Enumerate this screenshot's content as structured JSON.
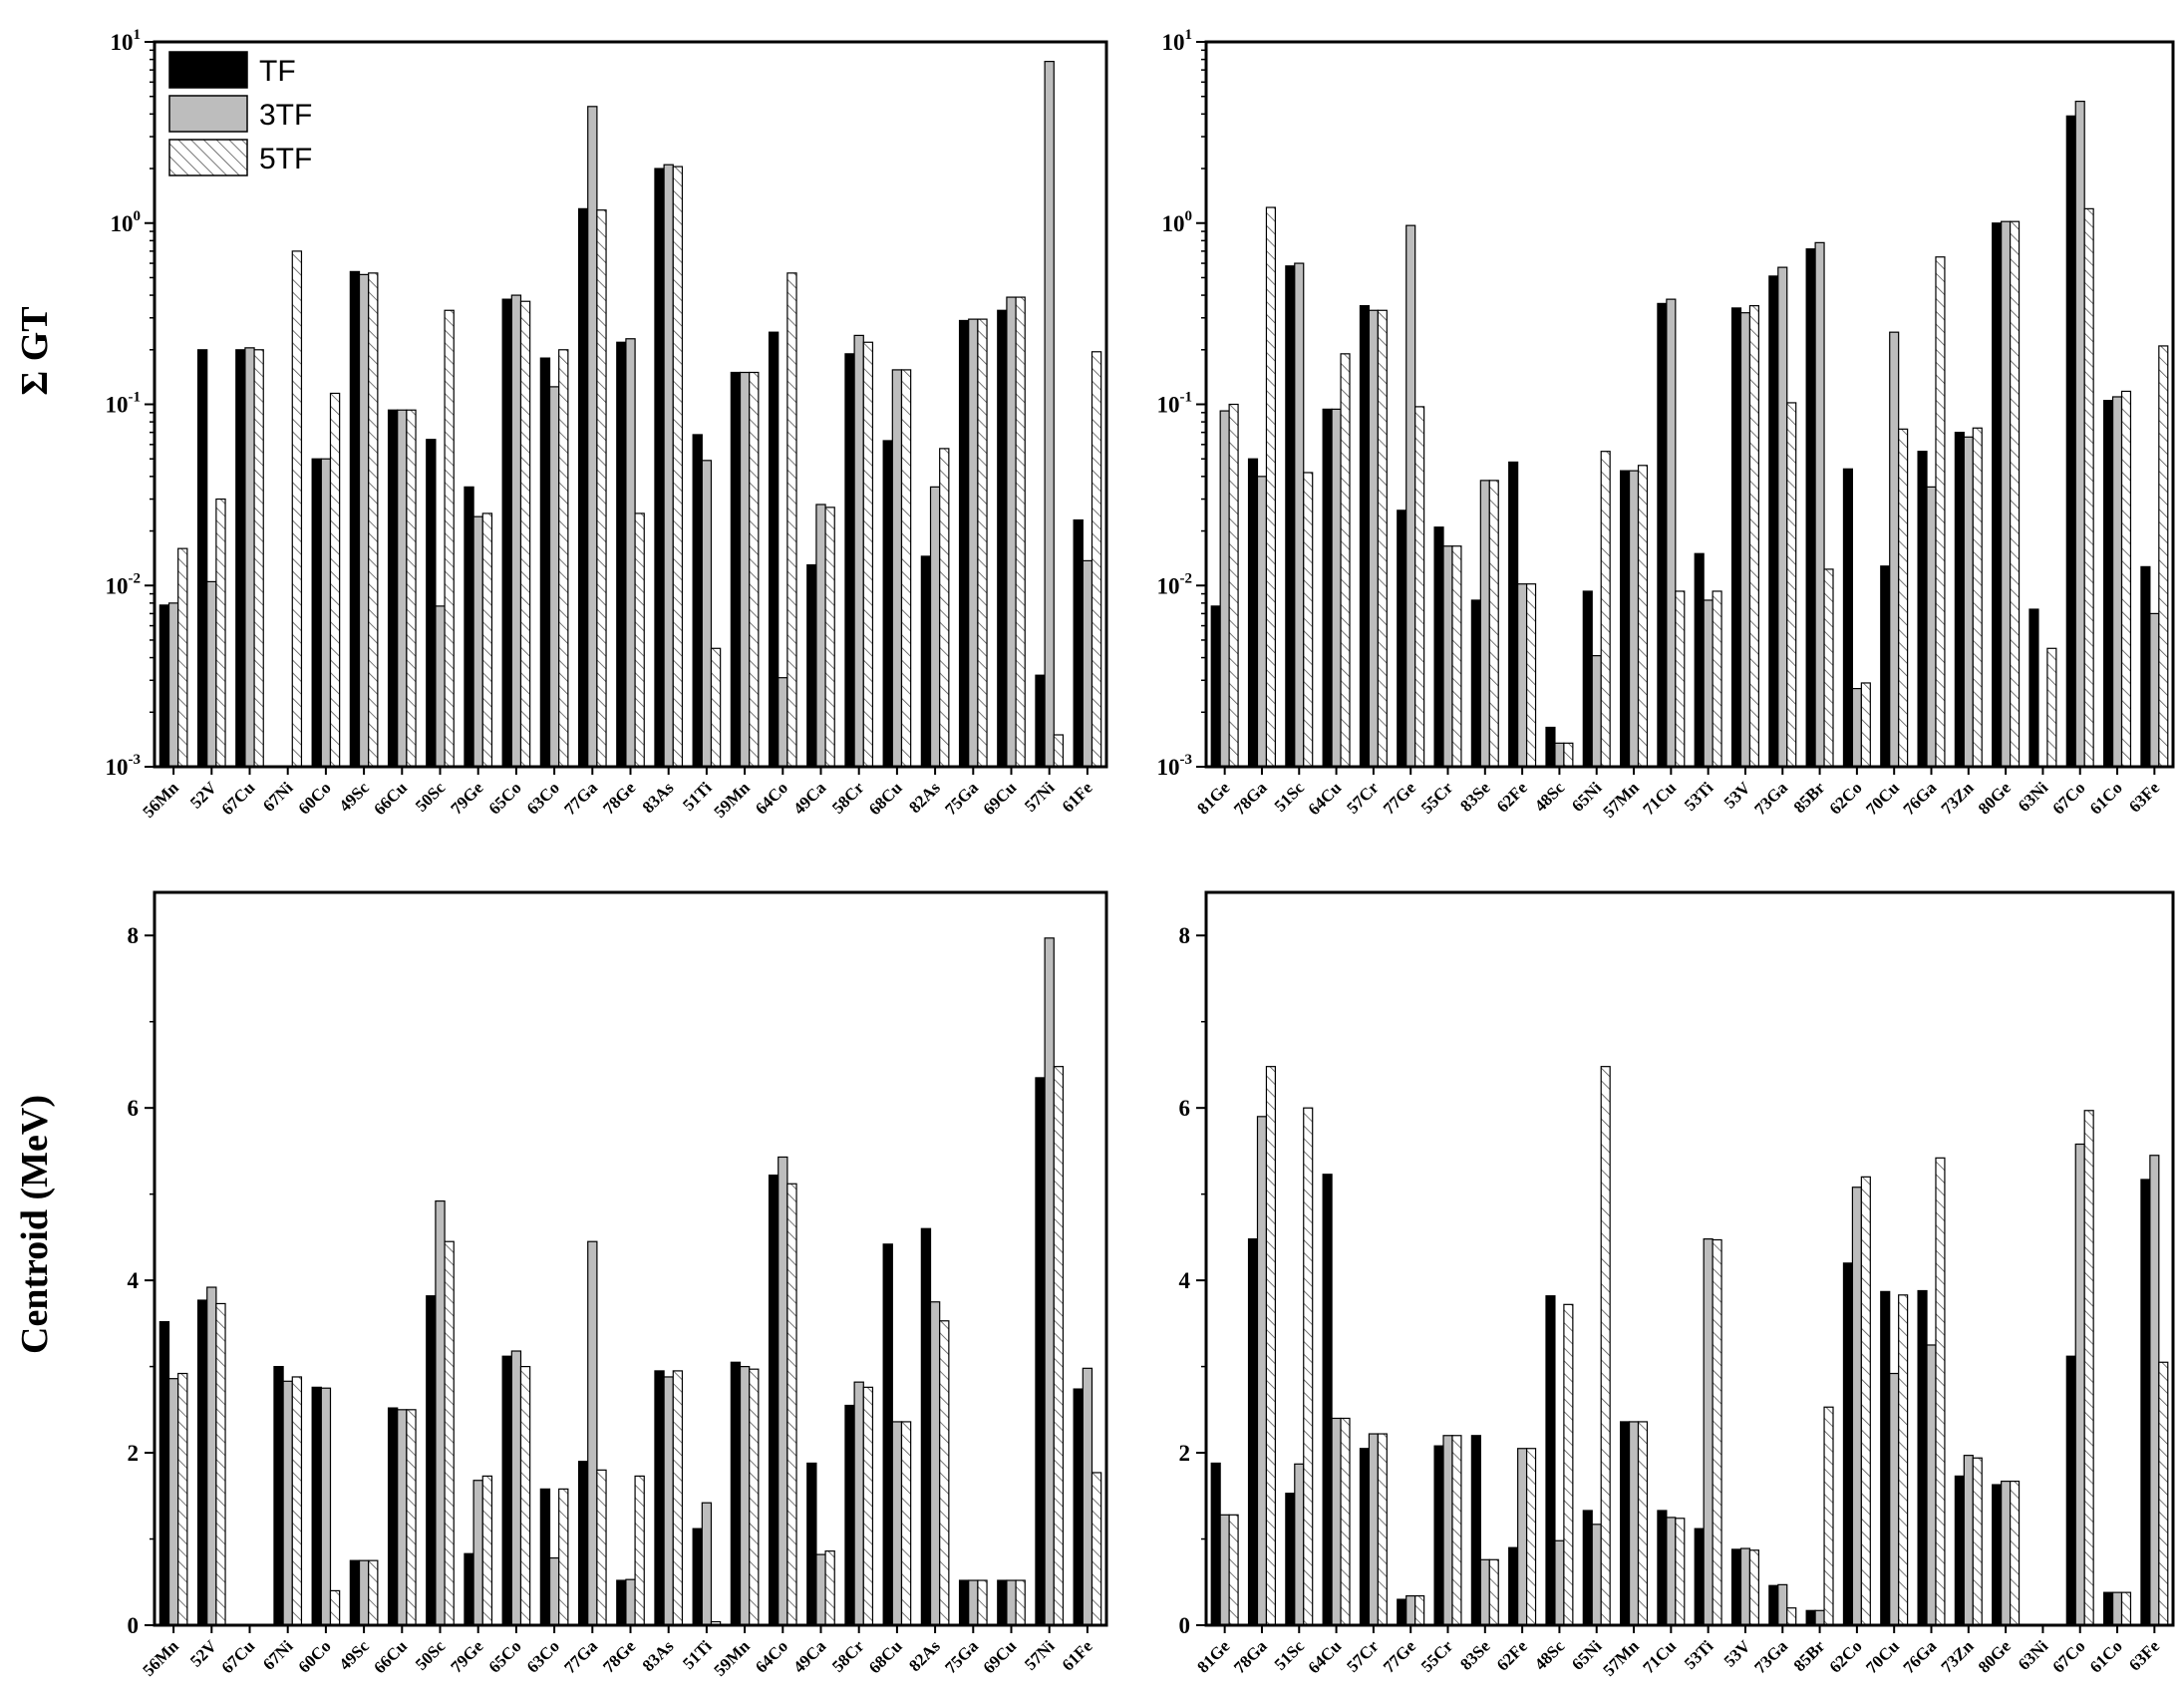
{
  "colors": {
    "TF": "#000000",
    "3TF": "#bdbdbd",
    "5TF": "#ffffff",
    "hatch": "#555555"
  },
  "legend": [
    "TF",
    "3TF",
    "5TF"
  ],
  "ylabels": {
    "gt": "Σ GT",
    "centroid": "Centroid (MeV)"
  },
  "chart_data": [
    {
      "type": "bar",
      "panel": "top-left",
      "yscale": "log",
      "ylim": [
        0.001,
        10
      ],
      "ylabel": "Σ GT",
      "categories": [
        "56Mn",
        "52V",
        "67Cu",
        "67Ni",
        "60Co",
        "49Sc",
        "66Cu",
        "50Sc",
        "79Ge",
        "65Co",
        "63Co",
        "77Ga",
        "78Ge",
        "83As",
        "51Ti",
        "59Mn",
        "64Co",
        "49Ca",
        "58Cr",
        "68Cu",
        "82As",
        "75Ga",
        "69Cu",
        "57Ni",
        "61Fe"
      ],
      "series": [
        {
          "name": "TF",
          "values": [
            0.0078,
            0.2,
            0.2,
            0,
            0.05,
            0.54,
            0.093,
            0.064,
            0.035,
            0.38,
            0.18,
            1.2,
            0.22,
            2.0,
            0.068,
            0.15,
            0.25,
            0.013,
            0.19,
            0.063,
            0.0145,
            0.29,
            0.33,
            0.0032,
            0.023
          ]
        },
        {
          "name": "3TF",
          "values": [
            0.008,
            0.0105,
            0.205,
            0,
            0.05,
            0.52,
            0.093,
            0.0077,
            0.024,
            0.4,
            0.125,
            4.4,
            0.23,
            2.1,
            0.049,
            0.15,
            0.0031,
            0.028,
            0.24,
            0.155,
            0.035,
            0.295,
            0.39,
            7.8,
            0.0137
          ]
        },
        {
          "name": "5TF",
          "values": [
            0.016,
            0.03,
            0.2,
            0.7,
            0.115,
            0.53,
            0.093,
            0.33,
            0.025,
            0.37,
            0.2,
            1.18,
            0.025,
            2.05,
            0.0045,
            0.15,
            0.53,
            0.027,
            0.22,
            0.155,
            0.057,
            0.295,
            0.39,
            0.0015,
            0.195
          ]
        }
      ]
    },
    {
      "type": "bar",
      "panel": "top-right",
      "yscale": "log",
      "ylim": [
        0.001,
        10
      ],
      "categories": [
        "81Ge",
        "78Ga",
        "51Sc",
        "64Cu",
        "57Cr",
        "77Ge",
        "55Cr",
        "83Se",
        "62Fe",
        "48Sc",
        "65Ni",
        "57Mn",
        "71Cu",
        "53Ti",
        "53V",
        "73Ga",
        "85Br",
        "62Co",
        "70Cu",
        "76Ga",
        "73Zn",
        "80Ge",
        "63Ni",
        "67Co",
        "61Co",
        "63Fe"
      ],
      "series": [
        {
          "name": "TF",
          "values": [
            0.0077,
            0.05,
            0.58,
            0.094,
            0.35,
            0.026,
            0.021,
            0.0083,
            0.048,
            0.00165,
            0.0093,
            0.043,
            0.36,
            0.015,
            0.34,
            0.51,
            0.72,
            0.044,
            0.0128,
            0.055,
            0.07,
            1.0,
            0.0074,
            3.9,
            0.105,
            0.0127
          ]
        },
        {
          "name": "3TF",
          "values": [
            0.092,
            0.04,
            0.6,
            0.094,
            0.33,
            0.97,
            0.0165,
            0.038,
            0.0102,
            0.00135,
            0.0041,
            0.043,
            0.38,
            0.0083,
            0.32,
            0.57,
            0.78,
            0.0027,
            0.25,
            0.035,
            0.066,
            1.02,
            0,
            4.7,
            0.11,
            0.007
          ]
        },
        {
          "name": "5TF",
          "values": [
            0.1,
            1.22,
            0.042,
            0.19,
            0.33,
            0.097,
            0.0165,
            0.038,
            0.0102,
            0.00135,
            0.055,
            0.046,
            0.0093,
            0.0093,
            0.35,
            0.102,
            0.0123,
            0.0029,
            0.073,
            0.65,
            0.074,
            1.02,
            0.0045,
            1.2,
            0.118,
            0.21
          ]
        }
      ]
    },
    {
      "type": "bar",
      "panel": "bottom-left",
      "yscale": "linear",
      "ylim": [
        0,
        8.5
      ],
      "ylabel": "Centroid (MeV)",
      "categories": [
        "56Mn",
        "52V",
        "67Cu",
        "67Ni",
        "60Co",
        "49Sc",
        "66Cu",
        "50Sc",
        "79Ge",
        "65Co",
        "63Co",
        "77Ga",
        "78Ge",
        "83As",
        "51Ti",
        "59Mn",
        "64Co",
        "49Ca",
        "58Cr",
        "68Cu",
        "82As",
        "75Ga",
        "69Cu",
        "57Ni",
        "61Fe"
      ],
      "series": [
        {
          "name": "TF",
          "values": [
            3.52,
            3.77,
            0,
            3.0,
            2.76,
            0.75,
            2.52,
            3.82,
            0.83,
            3.12,
            1.58,
            1.9,
            0.52,
            2.95,
            1.12,
            3.05,
            5.22,
            1.88,
            2.55,
            4.42,
            4.6,
            0.52,
            0.52,
            6.35,
            2.74
          ]
        },
        {
          "name": "3TF",
          "values": [
            2.86,
            3.92,
            0,
            2.83,
            2.75,
            0.75,
            2.5,
            4.92,
            1.68,
            3.18,
            0.78,
            4.45,
            0.53,
            2.88,
            1.42,
            3.0,
            5.43,
            0.82,
            2.82,
            2.36,
            3.75,
            0.52,
            0.52,
            7.97,
            2.98
          ]
        },
        {
          "name": "5TF",
          "values": [
            2.92,
            3.73,
            0,
            2.88,
            0.4,
            0.75,
            2.5,
            4.45,
            1.73,
            3.0,
            1.58,
            1.8,
            1.73,
            2.95,
            0.04,
            2.97,
            5.12,
            0.86,
            2.76,
            2.36,
            3.53,
            0.52,
            0.52,
            6.48,
            1.77
          ]
        }
      ]
    },
    {
      "type": "bar",
      "panel": "bottom-right",
      "yscale": "linear",
      "ylim": [
        0,
        8.5
      ],
      "categories": [
        "81Ge",
        "78Ga",
        "51Sc",
        "64Cu",
        "57Cr",
        "77Ge",
        "55Cr",
        "83Se",
        "62Fe",
        "48Sc",
        "65Ni",
        "57Mn",
        "71Cu",
        "53Ti",
        "53V",
        "73Ga",
        "85Br",
        "62Co",
        "70Cu",
        "76Ga",
        "73Zn",
        "80Ge",
        "63Ni",
        "67Co",
        "61Co",
        "63Fe"
      ],
      "series": [
        {
          "name": "TF",
          "values": [
            1.88,
            4.48,
            1.53,
            5.23,
            2.05,
            0.3,
            2.08,
            2.2,
            0.9,
            3.82,
            1.33,
            2.36,
            1.33,
            1.12,
            0.88,
            0.46,
            0.17,
            4.2,
            3.87,
            3.88,
            1.73,
            1.63,
            0,
            3.12,
            0.38,
            5.17
          ]
        },
        {
          "name": "3TF",
          "values": [
            1.28,
            5.9,
            1.87,
            2.4,
            2.22,
            0.34,
            2.2,
            0.76,
            2.05,
            0.98,
            1.17,
            2.36,
            1.25,
            4.48,
            0.89,
            0.47,
            0.17,
            5.08,
            2.92,
            3.25,
            1.97,
            1.67,
            0,
            5.58,
            0.38,
            5.45
          ]
        },
        {
          "name": "5TF",
          "values": [
            1.28,
            6.48,
            6.0,
            2.4,
            2.22,
            0.34,
            2.2,
            0.76,
            2.05,
            3.72,
            6.48,
            2.36,
            1.24,
            4.47,
            0.87,
            0.2,
            2.53,
            5.2,
            3.83,
            5.42,
            1.94,
            1.67,
            0,
            5.97,
            0.38,
            3.05
          ]
        }
      ]
    }
  ]
}
